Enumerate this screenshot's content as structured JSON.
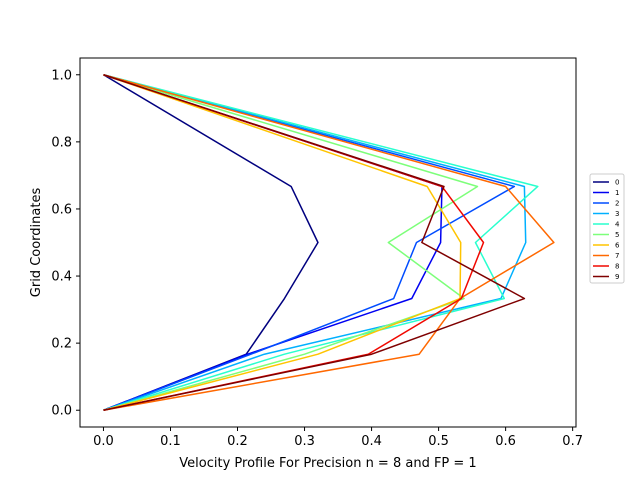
{
  "chart_data": {
    "type": "line",
    "title": "",
    "xlabel": "Velocity Profile For Precision n = 8 and FP = 1",
    "ylabel": "Grid Coordinates",
    "xlim": [
      -0.035,
      0.705
    ],
    "ylim": [
      -0.05,
      1.05
    ],
    "xticks": [
      0.0,
      0.1,
      0.2,
      0.3,
      0.4,
      0.5,
      0.6,
      0.7
    ],
    "xtick_labels": [
      "0.0",
      "0.1",
      "0.2",
      "0.3",
      "0.4",
      "0.5",
      "0.6",
      "0.7"
    ],
    "yticks": [
      0.0,
      0.2,
      0.4,
      0.6,
      0.8,
      1.0
    ],
    "ytick_labels": [
      "0.0",
      "0.2",
      "0.4",
      "0.6",
      "0.8",
      "1.0"
    ],
    "grid": false,
    "legend_position": "right",
    "series": [
      {
        "name": "0",
        "color": "#00007f",
        "x": [
          0.0,
          0.213,
          0.27,
          0.32,
          0.28,
          0.0
        ],
        "y": [
          0.0,
          0.167,
          0.333,
          0.5,
          0.667,
          1.0
        ]
      },
      {
        "name": "1",
        "color": "#0000f1",
        "x": [
          0.0,
          0.215,
          0.46,
          0.503,
          0.505,
          0.0
        ],
        "y": [
          0.0,
          0.167,
          0.333,
          0.5,
          0.667,
          1.0
        ]
      },
      {
        "name": "2",
        "color": "#004cff",
        "x": [
          0.0,
          0.22,
          0.433,
          0.467,
          0.613,
          0.0
        ],
        "y": [
          0.0,
          0.167,
          0.333,
          0.5,
          0.667,
          1.0
        ]
      },
      {
        "name": "3",
        "color": "#00b0ff",
        "x": [
          0.0,
          0.24,
          0.593,
          0.63,
          0.628,
          0.0
        ],
        "y": [
          0.0,
          0.167,
          0.333,
          0.5,
          0.667,
          1.0
        ]
      },
      {
        "name": "4",
        "color": "#29ffce",
        "x": [
          0.0,
          0.27,
          0.598,
          0.555,
          0.648,
          0.0
        ],
        "y": [
          0.0,
          0.167,
          0.333,
          0.5,
          0.667,
          1.0
        ]
      },
      {
        "name": "5",
        "color": "#7dff7a",
        "x": [
          0.0,
          0.3,
          0.538,
          0.425,
          0.558,
          0.0
        ],
        "y": [
          0.0,
          0.167,
          0.333,
          0.5,
          0.667,
          1.0
        ]
      },
      {
        "name": "6",
        "color": "#ffc400",
        "x": [
          0.0,
          0.32,
          0.532,
          0.533,
          0.483,
          0.0
        ],
        "y": [
          0.0,
          0.167,
          0.333,
          0.5,
          0.667,
          1.0
        ]
      },
      {
        "name": "7",
        "color": "#ff6800",
        "x": [
          0.0,
          0.471,
          0.532,
          0.672,
          0.6,
          0.0
        ],
        "y": [
          0.0,
          0.167,
          0.333,
          0.5,
          0.667,
          1.0
        ]
      },
      {
        "name": "8",
        "color": "#f10800",
        "x": [
          0.0,
          0.395,
          0.534,
          0.567,
          0.505,
          0.0
        ],
        "y": [
          0.0,
          0.167,
          0.333,
          0.5,
          0.667,
          1.0
        ]
      },
      {
        "name": "9",
        "color": "#7f0000",
        "x": [
          0.0,
          0.4,
          0.628,
          0.475,
          0.508,
          0.0
        ],
        "y": [
          0.0,
          0.167,
          0.333,
          0.5,
          0.667,
          1.0
        ]
      }
    ]
  }
}
